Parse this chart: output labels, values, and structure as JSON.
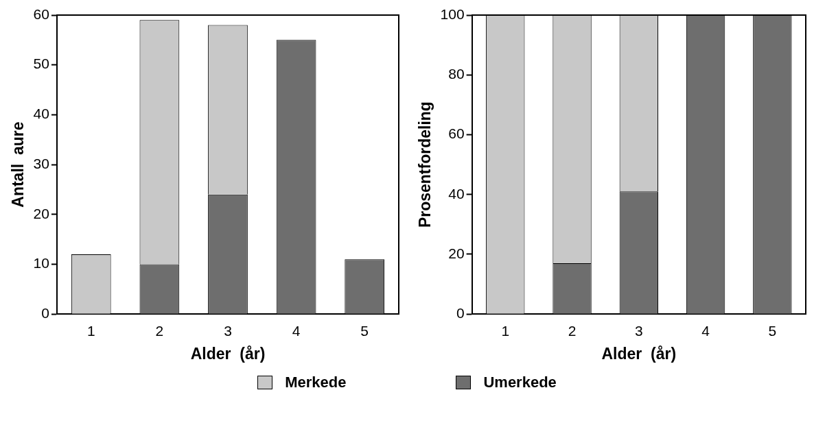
{
  "chart_data": [
    {
      "type": "bar",
      "stacked": true,
      "xlabel": "Alder  (år)",
      "ylabel": "Antall  aure",
      "categories": [
        "1",
        "2",
        "3",
        "4",
        "5"
      ],
      "series": [
        {
          "name": "Umerkede",
          "color": "#6e6e6e",
          "values": [
            0,
            10,
            24,
            55,
            11
          ]
        },
        {
          "name": "Merkede",
          "color": "#c8c8c8",
          "values": [
            12,
            49,
            34,
            0,
            0
          ]
        }
      ],
      "ylim": [
        0,
        60
      ],
      "yticks": [
        0,
        10,
        20,
        30,
        40,
        50,
        60
      ],
      "grid": false,
      "legend": "bottom"
    },
    {
      "type": "bar",
      "stacked": true,
      "xlabel": "Alder  (år)",
      "ylabel": "Prosentfordeling",
      "categories": [
        "1",
        "2",
        "3",
        "4",
        "5"
      ],
      "series": [
        {
          "color": "#6e6e6e",
          "values": [
            0,
            17,
            41,
            100,
            100
          ]
        },
        {
          "color": "#c8c8c8",
          "values": [
            100,
            83,
            59,
            0,
            0
          ]
        }
      ],
      "ylim": [
        0,
        100
      ],
      "yticks": [
        0,
        20,
        40,
        60,
        80,
        100
      ],
      "grid": false
    }
  ]
}
